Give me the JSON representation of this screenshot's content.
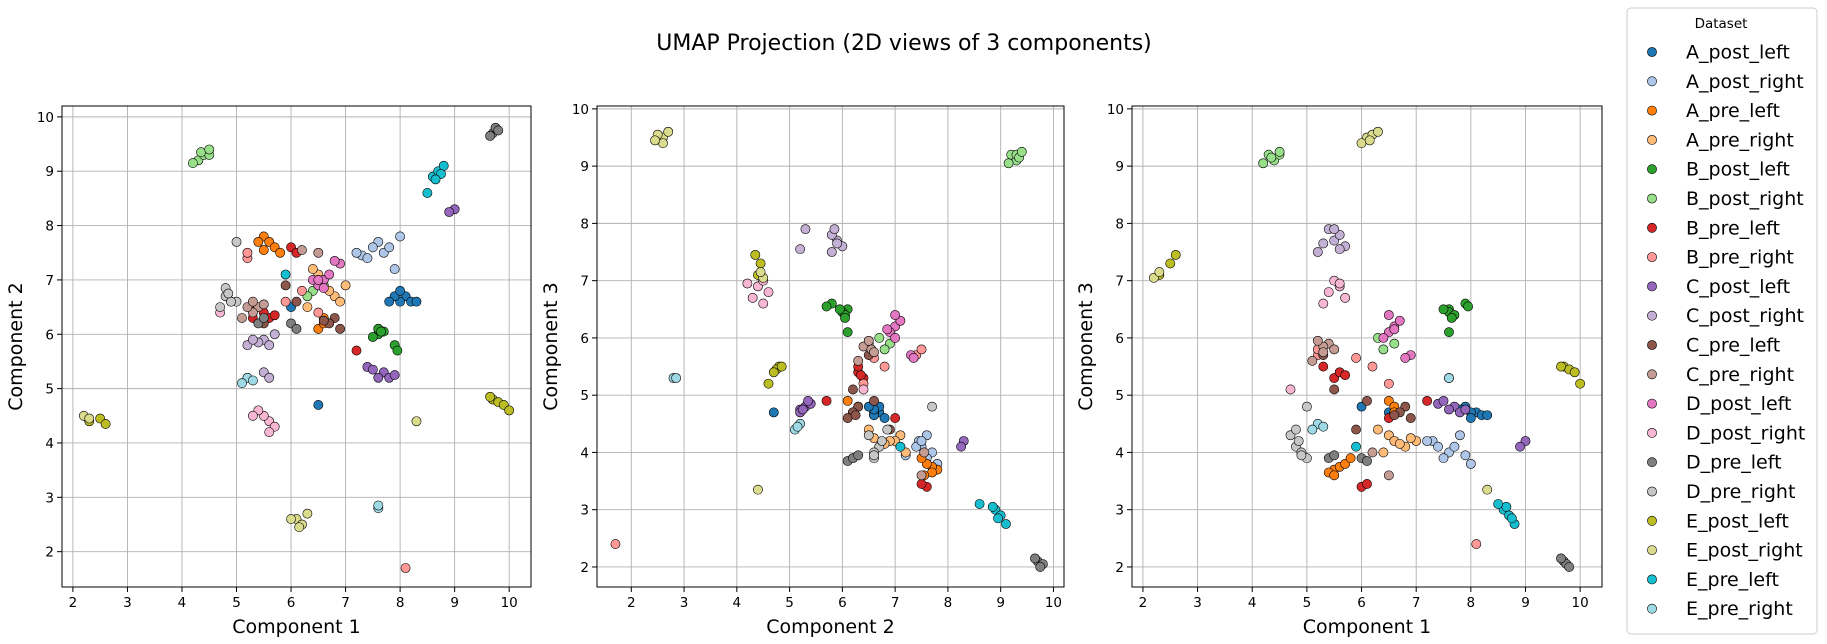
{
  "figure": {
    "title": "UMAP Projection (2D views of 3 components)"
  },
  "legend": {
    "title": "Dataset",
    "items": [
      {
        "name": "A_post_left",
        "color": "#1f77b4"
      },
      {
        "name": "A_post_right",
        "color": "#aec7e8"
      },
      {
        "name": "A_pre_left",
        "color": "#ff7f0e"
      },
      {
        "name": "A_pre_right",
        "color": "#ffbb78"
      },
      {
        "name": "B_post_left",
        "color": "#2ca02c"
      },
      {
        "name": "B_post_right",
        "color": "#98df8a"
      },
      {
        "name": "B_pre_left",
        "color": "#d62728"
      },
      {
        "name": "B_pre_right",
        "color": "#ff9896"
      },
      {
        "name": "C_post_left",
        "color": "#9467bd"
      },
      {
        "name": "C_post_right",
        "color": "#c5b0d5"
      },
      {
        "name": "C_pre_left",
        "color": "#8c564b"
      },
      {
        "name": "C_pre_right",
        "color": "#c49c94"
      },
      {
        "name": "D_post_left",
        "color": "#e377c2"
      },
      {
        "name": "D_post_right",
        "color": "#f7b6d2"
      },
      {
        "name": "D_pre_left",
        "color": "#7f7f7f"
      },
      {
        "name": "D_pre_right",
        "color": "#c7c7c7"
      },
      {
        "name": "E_post_left",
        "color": "#bcbd22"
      },
      {
        "name": "E_post_right",
        "color": "#dbdb8d"
      },
      {
        "name": "E_pre_left",
        "color": "#17becf"
      },
      {
        "name": "E_pre_right",
        "color": "#9edae5"
      }
    ]
  },
  "chart_data": {
    "type": "scatter",
    "title": "UMAP Projection (2D views of 3 components)",
    "grid": true,
    "legend_position": "right",
    "panels": [
      {
        "xlabel": "Component 1",
        "ylabel": "Component 2",
        "xlim": [
          1.8,
          10.4
        ],
        "ylim": [
          1.35,
          10.2
        ],
        "xticks": [
          2,
          3,
          4,
          5,
          6,
          7,
          8,
          9,
          10
        ],
        "yticks": [
          2,
          3,
          4,
          5,
          6,
          7,
          8,
          9,
          10
        ]
      },
      {
        "xlabel": "Component 2",
        "ylabel": "Component 3",
        "xlim": [
          1.35,
          10.2
        ],
        "ylim": [
          1.65,
          10.05
        ],
        "xticks": [
          2,
          3,
          4,
          5,
          6,
          7,
          8,
          9,
          10
        ],
        "yticks": [
          2,
          3,
          4,
          5,
          6,
          7,
          8,
          9,
          10
        ]
      },
      {
        "xlabel": "Component 1",
        "ylabel": "Component 3",
        "xlim": [
          1.8,
          10.4
        ],
        "ylim": [
          1.65,
          10.05
        ],
        "xticks": [
          2,
          3,
          4,
          5,
          6,
          7,
          8,
          9,
          10
        ],
        "yticks": [
          2,
          3,
          4,
          5,
          6,
          7,
          8,
          9,
          10
        ]
      }
    ],
    "series": [
      {
        "name": "A_post_left",
        "points": [
          [
            8.1,
            6.7,
            4.7
          ],
          [
            8.2,
            6.6,
            4.65
          ],
          [
            8.0,
            6.6,
            4.7
          ],
          [
            8.3,
            6.6,
            4.65
          ],
          [
            7.9,
            6.7,
            4.8
          ],
          [
            7.8,
            6.6,
            4.75
          ],
          [
            6.0,
            6.5,
            4.8
          ],
          [
            8.0,
            6.8,
            4.6
          ],
          [
            6.5,
            4.7,
            4.7
          ]
        ]
      },
      {
        "name": "A_post_right",
        "points": [
          [
            7.6,
            7.7,
            4.0
          ],
          [
            7.5,
            7.6,
            3.9
          ],
          [
            7.7,
            7.5,
            4.1
          ],
          [
            7.3,
            7.45,
            4.2
          ],
          [
            8.0,
            7.8,
            3.8
          ],
          [
            7.8,
            7.6,
            4.3
          ],
          [
            7.4,
            7.4,
            4.1
          ],
          [
            7.9,
            7.2,
            3.95
          ],
          [
            7.2,
            7.5,
            4.2
          ]
        ]
      },
      {
        "name": "A_pre_left",
        "points": [
          [
            5.5,
            7.8,
            3.7
          ],
          [
            5.6,
            7.7,
            3.75
          ],
          [
            5.4,
            7.7,
            3.65
          ],
          [
            5.7,
            7.6,
            3.8
          ],
          [
            5.5,
            7.55,
            3.6
          ],
          [
            6.5,
            6.1,
            4.9
          ],
          [
            5.8,
            7.5,
            3.9
          ],
          [
            6.6,
            6.3,
            4.8
          ],
          [
            6.6,
            6.2,
            4.7
          ]
        ]
      },
      {
        "name": "A_pre_right",
        "points": [
          [
            6.5,
            7.1,
            4.3
          ],
          [
            6.6,
            7.0,
            4.2
          ],
          [
            6.8,
            6.7,
            4.1
          ],
          [
            7.0,
            6.9,
            4.2
          ],
          [
            6.4,
            7.2,
            4.0
          ],
          [
            6.9,
            6.6,
            4.25
          ],
          [
            6.3,
            6.5,
            4.4
          ],
          [
            6.7,
            6.8,
            4.15
          ]
        ]
      },
      {
        "name": "B_post_left",
        "points": [
          [
            7.6,
            6.1,
            6.5
          ],
          [
            7.6,
            6.0,
            6.45
          ],
          [
            7.7,
            6.05,
            6.4
          ],
          [
            7.5,
            5.95,
            6.5
          ],
          [
            7.6,
            6.1,
            6.1
          ],
          [
            7.9,
            5.8,
            6.6
          ],
          [
            7.95,
            5.7,
            6.55
          ],
          [
            7.65,
            6.05,
            6.35
          ]
        ]
      },
      {
        "name": "B_post_right",
        "points": [
          [
            4.3,
            9.2,
            9.2
          ],
          [
            4.4,
            9.3,
            9.1
          ],
          [
            4.5,
            9.3,
            9.2
          ],
          [
            4.2,
            9.15,
            9.05
          ],
          [
            4.35,
            9.35,
            9.15
          ],
          [
            4.5,
            9.4,
            9.25
          ],
          [
            6.6,
            6.9,
            5.9
          ],
          [
            6.4,
            6.8,
            5.8
          ],
          [
            6.3,
            6.7,
            6.0
          ]
        ]
      },
      {
        "name": "B_pre_left",
        "points": [
          [
            5.5,
            6.4,
            5.3
          ],
          [
            5.6,
            6.3,
            5.4
          ],
          [
            5.7,
            6.35,
            5.35
          ],
          [
            5.3,
            6.3,
            5.5
          ],
          [
            6.0,
            7.6,
            3.4
          ],
          [
            6.1,
            7.5,
            3.45
          ],
          [
            7.2,
            5.7,
            4.9
          ],
          [
            6.5,
            7.0,
            4.6
          ]
        ]
      },
      {
        "name": "B_pre_right",
        "points": [
          [
            8.1,
            1.7,
            2.4
          ],
          [
            5.2,
            7.4,
            5.7
          ],
          [
            5.2,
            7.5,
            5.8
          ],
          [
            6.5,
            6.4,
            5.2
          ],
          [
            6.2,
            6.8,
            5.5
          ],
          [
            5.9,
            6.6,
            5.65
          ]
        ]
      },
      {
        "name": "C_post_left",
        "points": [
          [
            7.7,
            5.3,
            4.8
          ],
          [
            7.6,
            5.2,
            4.75
          ],
          [
            7.8,
            5.2,
            4.7
          ],
          [
            7.4,
            5.4,
            4.85
          ],
          [
            7.5,
            5.35,
            4.9
          ],
          [
            7.9,
            5.25,
            4.75
          ],
          [
            9.0,
            8.3,
            4.2
          ],
          [
            8.9,
            8.25,
            4.1
          ]
        ]
      },
      {
        "name": "C_post_right",
        "points": [
          [
            5.5,
            5.9,
            7.7
          ],
          [
            5.6,
            5.8,
            7.8
          ],
          [
            5.4,
            5.85,
            7.9
          ],
          [
            5.7,
            6.0,
            7.6
          ],
          [
            5.2,
            5.8,
            7.5
          ],
          [
            5.3,
            5.9,
            7.65
          ],
          [
            5.5,
            5.3,
            7.9
          ],
          [
            5.6,
            5.2,
            7.55
          ]
        ]
      },
      {
        "name": "C_pre_left",
        "points": [
          [
            6.8,
            6.3,
            4.8
          ],
          [
            6.7,
            6.2,
            4.7
          ],
          [
            6.9,
            6.1,
            4.6
          ],
          [
            6.6,
            6.25,
            4.65
          ],
          [
            5.3,
            6.5,
            5.7
          ],
          [
            5.5,
            6.2,
            5.1
          ],
          [
            5.9,
            6.9,
            4.4
          ],
          [
            6.1,
            6.6,
            4.9
          ]
        ]
      },
      {
        "name": "C_pre_right",
        "points": [
          [
            5.4,
            6.5,
            5.9
          ],
          [
            5.3,
            6.4,
            5.85
          ],
          [
            5.5,
            6.55,
            5.8
          ],
          [
            5.2,
            6.5,
            5.95
          ],
          [
            6.5,
            7.5,
            3.6
          ],
          [
            6.2,
            7.55,
            4.0
          ],
          [
            5.1,
            6.3,
            5.6
          ],
          [
            5.3,
            6.6,
            5.75
          ]
        ]
      },
      {
        "name": "D_post_left",
        "points": [
          [
            6.6,
            7.0,
            6.2
          ],
          [
            6.5,
            6.9,
            6.1
          ],
          [
            6.7,
            7.1,
            6.3
          ],
          [
            6.4,
            7.0,
            6.0
          ],
          [
            6.9,
            7.3,
            5.7
          ],
          [
            6.8,
            7.35,
            5.65
          ],
          [
            6.5,
            7.0,
            6.4
          ],
          [
            6.6,
            6.85,
            6.15
          ]
        ]
      },
      {
        "name": "D_post_right",
        "points": [
          [
            5.6,
            4.4,
            6.9
          ],
          [
            5.5,
            4.5,
            7.0
          ],
          [
            5.4,
            4.6,
            6.8
          ],
          [
            5.7,
            4.3,
            6.7
          ],
          [
            5.3,
            4.5,
            6.6
          ],
          [
            5.6,
            4.2,
            6.95
          ],
          [
            4.7,
            6.4,
            5.1
          ]
        ]
      },
      {
        "name": "D_pre_left",
        "points": [
          [
            9.7,
            9.7,
            2.1
          ],
          [
            9.75,
            9.8,
            2.05
          ],
          [
            9.8,
            9.75,
            2.0
          ],
          [
            9.65,
            9.65,
            2.15
          ],
          [
            6.0,
            6.2,
            3.9
          ],
          [
            6.1,
            6.1,
            3.85
          ],
          [
            5.4,
            6.2,
            3.9
          ],
          [
            5.5,
            6.3,
            3.95
          ]
        ]
      },
      {
        "name": "D_pre_right",
        "points": [
          [
            4.8,
            6.7,
            4.1
          ],
          [
            4.9,
            6.6,
            4.0
          ],
          [
            5.0,
            6.6,
            3.9
          ],
          [
            4.7,
            6.5,
            4.3
          ],
          [
            4.8,
            6.85,
            4.4
          ],
          [
            5.0,
            7.7,
            4.8
          ],
          [
            4.9,
            6.6,
            3.95
          ],
          [
            4.85,
            6.75,
            4.2
          ]
        ]
      },
      {
        "name": "E_post_left",
        "points": [
          [
            9.7,
            4.8,
            5.5
          ],
          [
            9.8,
            4.75,
            5.45
          ],
          [
            9.9,
            4.7,
            5.4
          ],
          [
            10.0,
            4.6,
            5.2
          ],
          [
            9.65,
            4.85,
            5.5
          ],
          [
            2.3,
            4.4,
            7.1
          ],
          [
            2.5,
            4.45,
            7.3
          ],
          [
            2.6,
            4.35,
            7.45
          ]
        ]
      },
      {
        "name": "E_post_right",
        "points": [
          [
            6.1,
            2.6,
            9.5
          ],
          [
            6.2,
            2.5,
            9.55
          ],
          [
            6.3,
            2.7,
            9.6
          ],
          [
            6.0,
            2.6,
            9.4
          ],
          [
            6.15,
            2.45,
            9.45
          ],
          [
            2.2,
            4.5,
            7.05
          ],
          [
            2.3,
            4.45,
            7.15
          ],
          [
            8.3,
            4.4,
            3.35
          ]
        ]
      },
      {
        "name": "E_pre_left",
        "points": [
          [
            8.6,
            8.9,
            3.0
          ],
          [
            8.7,
            9.0,
            2.9
          ],
          [
            8.8,
            9.1,
            2.75
          ],
          [
            8.75,
            8.95,
            2.85
          ],
          [
            8.65,
            8.85,
            3.05
          ],
          [
            5.9,
            7.1,
            4.1
          ],
          [
            8.5,
            8.6,
            3.1
          ]
        ]
      },
      {
        "name": "E_pre_right",
        "points": [
          [
            7.6,
            2.8,
            5.3
          ],
          [
            7.6,
            2.85,
            5.3
          ],
          [
            5.2,
            5.2,
            4.5
          ],
          [
            5.1,
            5.1,
            4.4
          ],
          [
            5.3,
            5.15,
            4.45
          ]
        ]
      }
    ]
  }
}
